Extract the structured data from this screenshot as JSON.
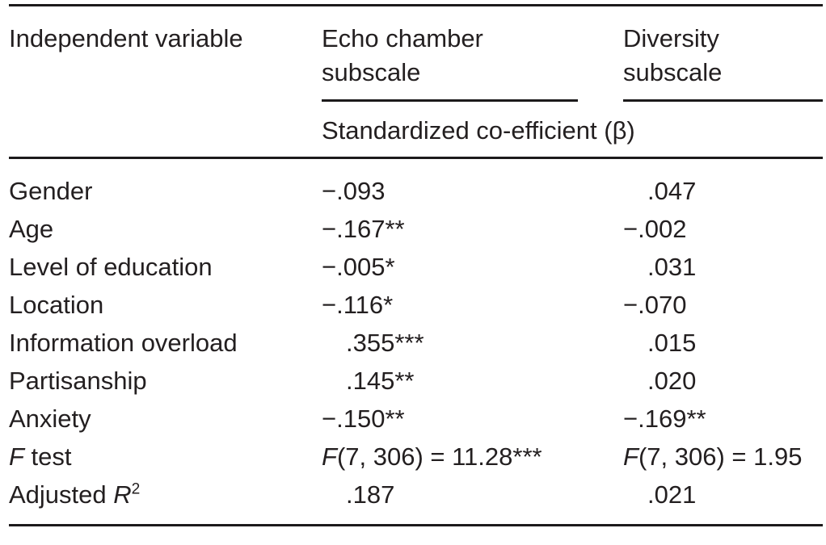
{
  "colors": {
    "background": "#ffffff",
    "text": "#231f20",
    "rule": "#1c1a1b"
  },
  "table": {
    "header": {
      "col1": "Independent variable",
      "col2_line1": "Echo chamber",
      "col2_line2": "subscale",
      "col3_line1": "Diversity",
      "col3_line2": "subscale",
      "spanner": "Standardized co-efficient (β)"
    },
    "rows": [
      {
        "label": {
          "segments": [
            {
              "t": "Gender"
            }
          ]
        },
        "echo": {
          "pad": false,
          "segments": [
            {
              "t": "−.093"
            }
          ]
        },
        "diversity": {
          "pad": true,
          "segments": [
            {
              "t": ".047"
            }
          ]
        }
      },
      {
        "label": {
          "segments": [
            {
              "t": "Age"
            }
          ]
        },
        "echo": {
          "pad": false,
          "segments": [
            {
              "t": "−.167**"
            }
          ]
        },
        "diversity": {
          "pad": false,
          "segments": [
            {
              "t": "−.002"
            }
          ]
        }
      },
      {
        "label": {
          "segments": [
            {
              "t": "Level of education"
            }
          ]
        },
        "echo": {
          "pad": false,
          "segments": [
            {
              "t": "−.005*"
            }
          ]
        },
        "diversity": {
          "pad": true,
          "segments": [
            {
              "t": ".031"
            }
          ]
        }
      },
      {
        "label": {
          "segments": [
            {
              "t": "Location"
            }
          ]
        },
        "echo": {
          "pad": false,
          "segments": [
            {
              "t": "−.116*"
            }
          ]
        },
        "diversity": {
          "pad": false,
          "segments": [
            {
              "t": "−.070"
            }
          ]
        }
      },
      {
        "label": {
          "segments": [
            {
              "t": "Information overload"
            }
          ]
        },
        "echo": {
          "pad": true,
          "segments": [
            {
              "t": ".355***"
            }
          ]
        },
        "diversity": {
          "pad": true,
          "segments": [
            {
              "t": ".015"
            }
          ]
        }
      },
      {
        "label": {
          "segments": [
            {
              "t": "Partisanship"
            }
          ]
        },
        "echo": {
          "pad": true,
          "segments": [
            {
              "t": ".145**"
            }
          ]
        },
        "diversity": {
          "pad": true,
          "segments": [
            {
              "t": ".020"
            }
          ]
        }
      },
      {
        "label": {
          "segments": [
            {
              "t": "Anxiety"
            }
          ]
        },
        "echo": {
          "pad": false,
          "segments": [
            {
              "t": "−.150**"
            }
          ]
        },
        "diversity": {
          "pad": false,
          "segments": [
            {
              "t": "−.169**"
            }
          ]
        }
      },
      {
        "label": {
          "segments": [
            {
              "t": "F",
              "italic": true
            },
            {
              "t": " test"
            }
          ]
        },
        "echo": {
          "pad": false,
          "segments": [
            {
              "t": "F",
              "italic": true
            },
            {
              "t": "(7, 306) = 11.28***"
            }
          ]
        },
        "diversity": {
          "pad": false,
          "segments": [
            {
              "t": "F",
              "italic": true
            },
            {
              "t": "(7, 306) = 1.95"
            }
          ]
        }
      },
      {
        "label": {
          "segments": [
            {
              "t": "Adjusted "
            },
            {
              "t": "R",
              "italic": true
            },
            {
              "t": "2",
              "sup": true
            }
          ]
        },
        "echo": {
          "pad": true,
          "segments": [
            {
              "t": ".187"
            }
          ]
        },
        "diversity": {
          "pad": true,
          "segments": [
            {
              "t": ".021"
            }
          ]
        }
      }
    ]
  }
}
